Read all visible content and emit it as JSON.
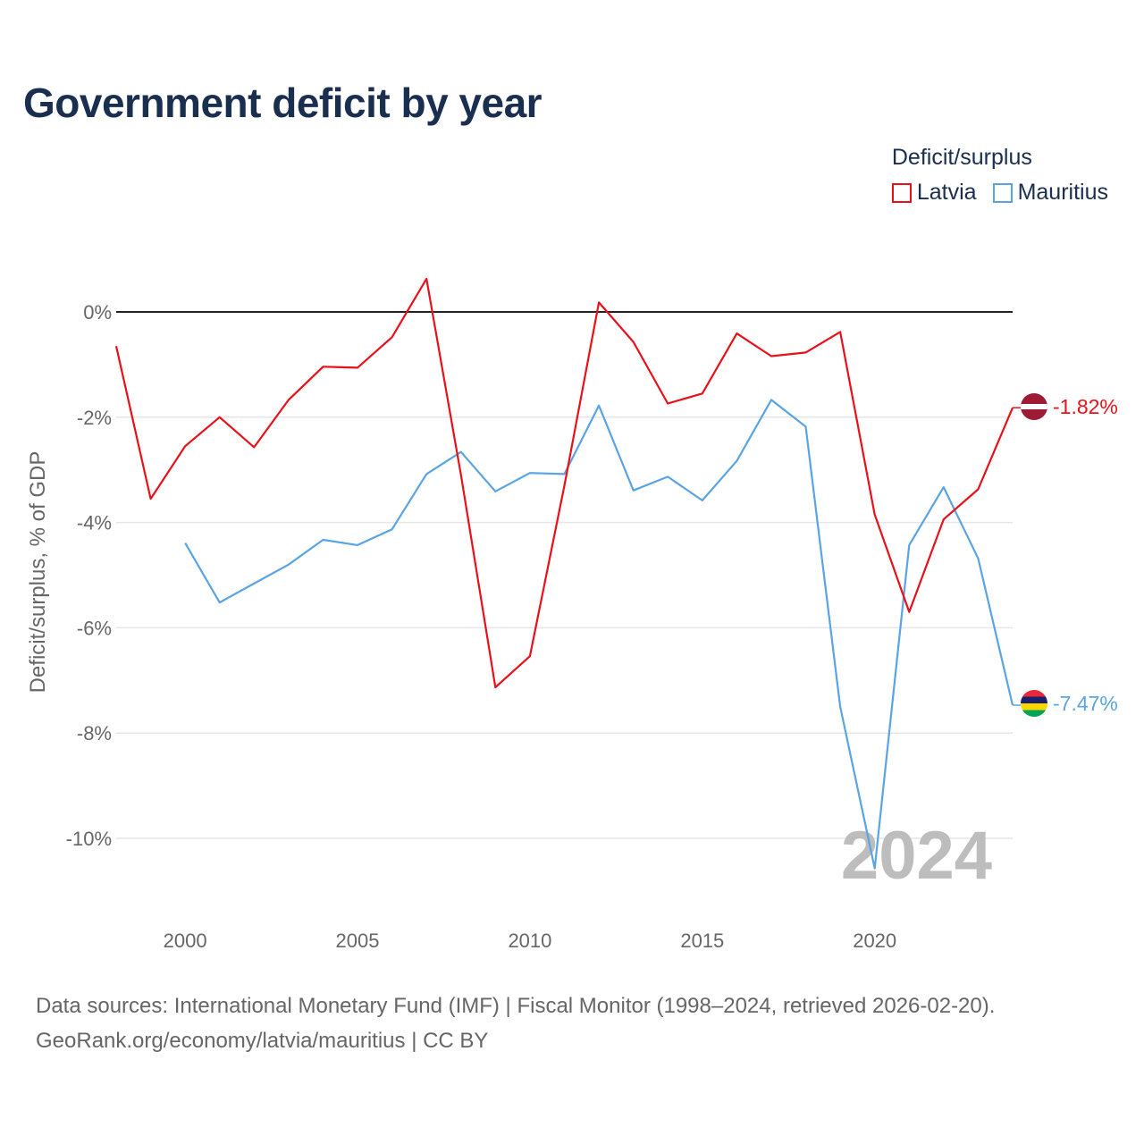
{
  "title": "Government deficit by year",
  "legend": {
    "title": "Deficit/surplus",
    "items": [
      {
        "label": "Latvia",
        "color": "#e8111a"
      },
      {
        "label": "Mauritius",
        "color": "#5aa4e3"
      }
    ]
  },
  "footer": {
    "line1": "Data sources: International Monetary Fund (IMF) | Fiscal Monitor (1998–2024, retrieved 2026-02-20).",
    "line2": "GeoRank.org/economy/latvia/mauritius | CC BY"
  },
  "year_watermark": "2024",
  "chart_data": {
    "type": "line",
    "ylabel": "Deficit/surplus, % of GDP",
    "xlabel": "",
    "xlim": [
      1998,
      2024
    ],
    "ylim": [
      -11.5,
      1.5
    ],
    "x_ticks": [
      2000,
      2005,
      2010,
      2015,
      2020
    ],
    "y_ticks": [
      0,
      -2,
      -4,
      -6,
      -8,
      -10
    ],
    "y_tick_labels": [
      "0%",
      "-2%",
      "-4%",
      "-6%",
      "-8%",
      "-10%"
    ],
    "series": [
      {
        "name": "Latvia",
        "color": "#e8111a",
        "end_label": "-1.82%",
        "points": [
          [
            1998,
            -0.65
          ],
          [
            1999,
            -3.55
          ],
          [
            2000,
            -2.55
          ],
          [
            2001,
            -2.0
          ],
          [
            2002,
            -2.57
          ],
          [
            2003,
            -1.67
          ],
          [
            2004,
            -1.04
          ],
          [
            2005,
            -1.06
          ],
          [
            2006,
            -0.48
          ],
          [
            2007,
            0.63
          ],
          [
            2008,
            -3.1
          ],
          [
            2009,
            -7.13
          ],
          [
            2010,
            -6.54
          ],
          [
            2011,
            -3.3
          ],
          [
            2012,
            0.18
          ],
          [
            2013,
            -0.57
          ],
          [
            2014,
            -1.74
          ],
          [
            2015,
            -1.55
          ],
          [
            2016,
            -0.41
          ],
          [
            2017,
            -0.84
          ],
          [
            2018,
            -0.77
          ],
          [
            2019,
            -0.38
          ],
          [
            2020,
            -3.85
          ],
          [
            2021,
            -5.7
          ],
          [
            2022,
            -3.94
          ],
          [
            2023,
            -3.37
          ],
          [
            2024,
            -1.82
          ]
        ]
      },
      {
        "name": "Mauritius",
        "color": "#5aa4e3",
        "end_label": "-7.47%",
        "points": [
          [
            2000,
            -4.39
          ],
          [
            2001,
            -5.52
          ],
          [
            2002,
            -5.16
          ],
          [
            2003,
            -4.8
          ],
          [
            2004,
            -4.33
          ],
          [
            2005,
            -4.43
          ],
          [
            2006,
            -4.13
          ],
          [
            2007,
            -3.08
          ],
          [
            2008,
            -2.66
          ],
          [
            2009,
            -3.41
          ],
          [
            2010,
            -3.06
          ],
          [
            2011,
            -3.08
          ],
          [
            2012,
            -1.78
          ],
          [
            2013,
            -3.39
          ],
          [
            2014,
            -3.13
          ],
          [
            2015,
            -3.58
          ],
          [
            2016,
            -2.83
          ],
          [
            2017,
            -1.67
          ],
          [
            2018,
            -2.18
          ],
          [
            2019,
            -7.5
          ],
          [
            2020,
            -10.57
          ],
          [
            2021,
            -4.43
          ],
          [
            2022,
            -3.33
          ],
          [
            2023,
            -4.68
          ],
          [
            2024,
            -7.47
          ]
        ]
      }
    ]
  }
}
